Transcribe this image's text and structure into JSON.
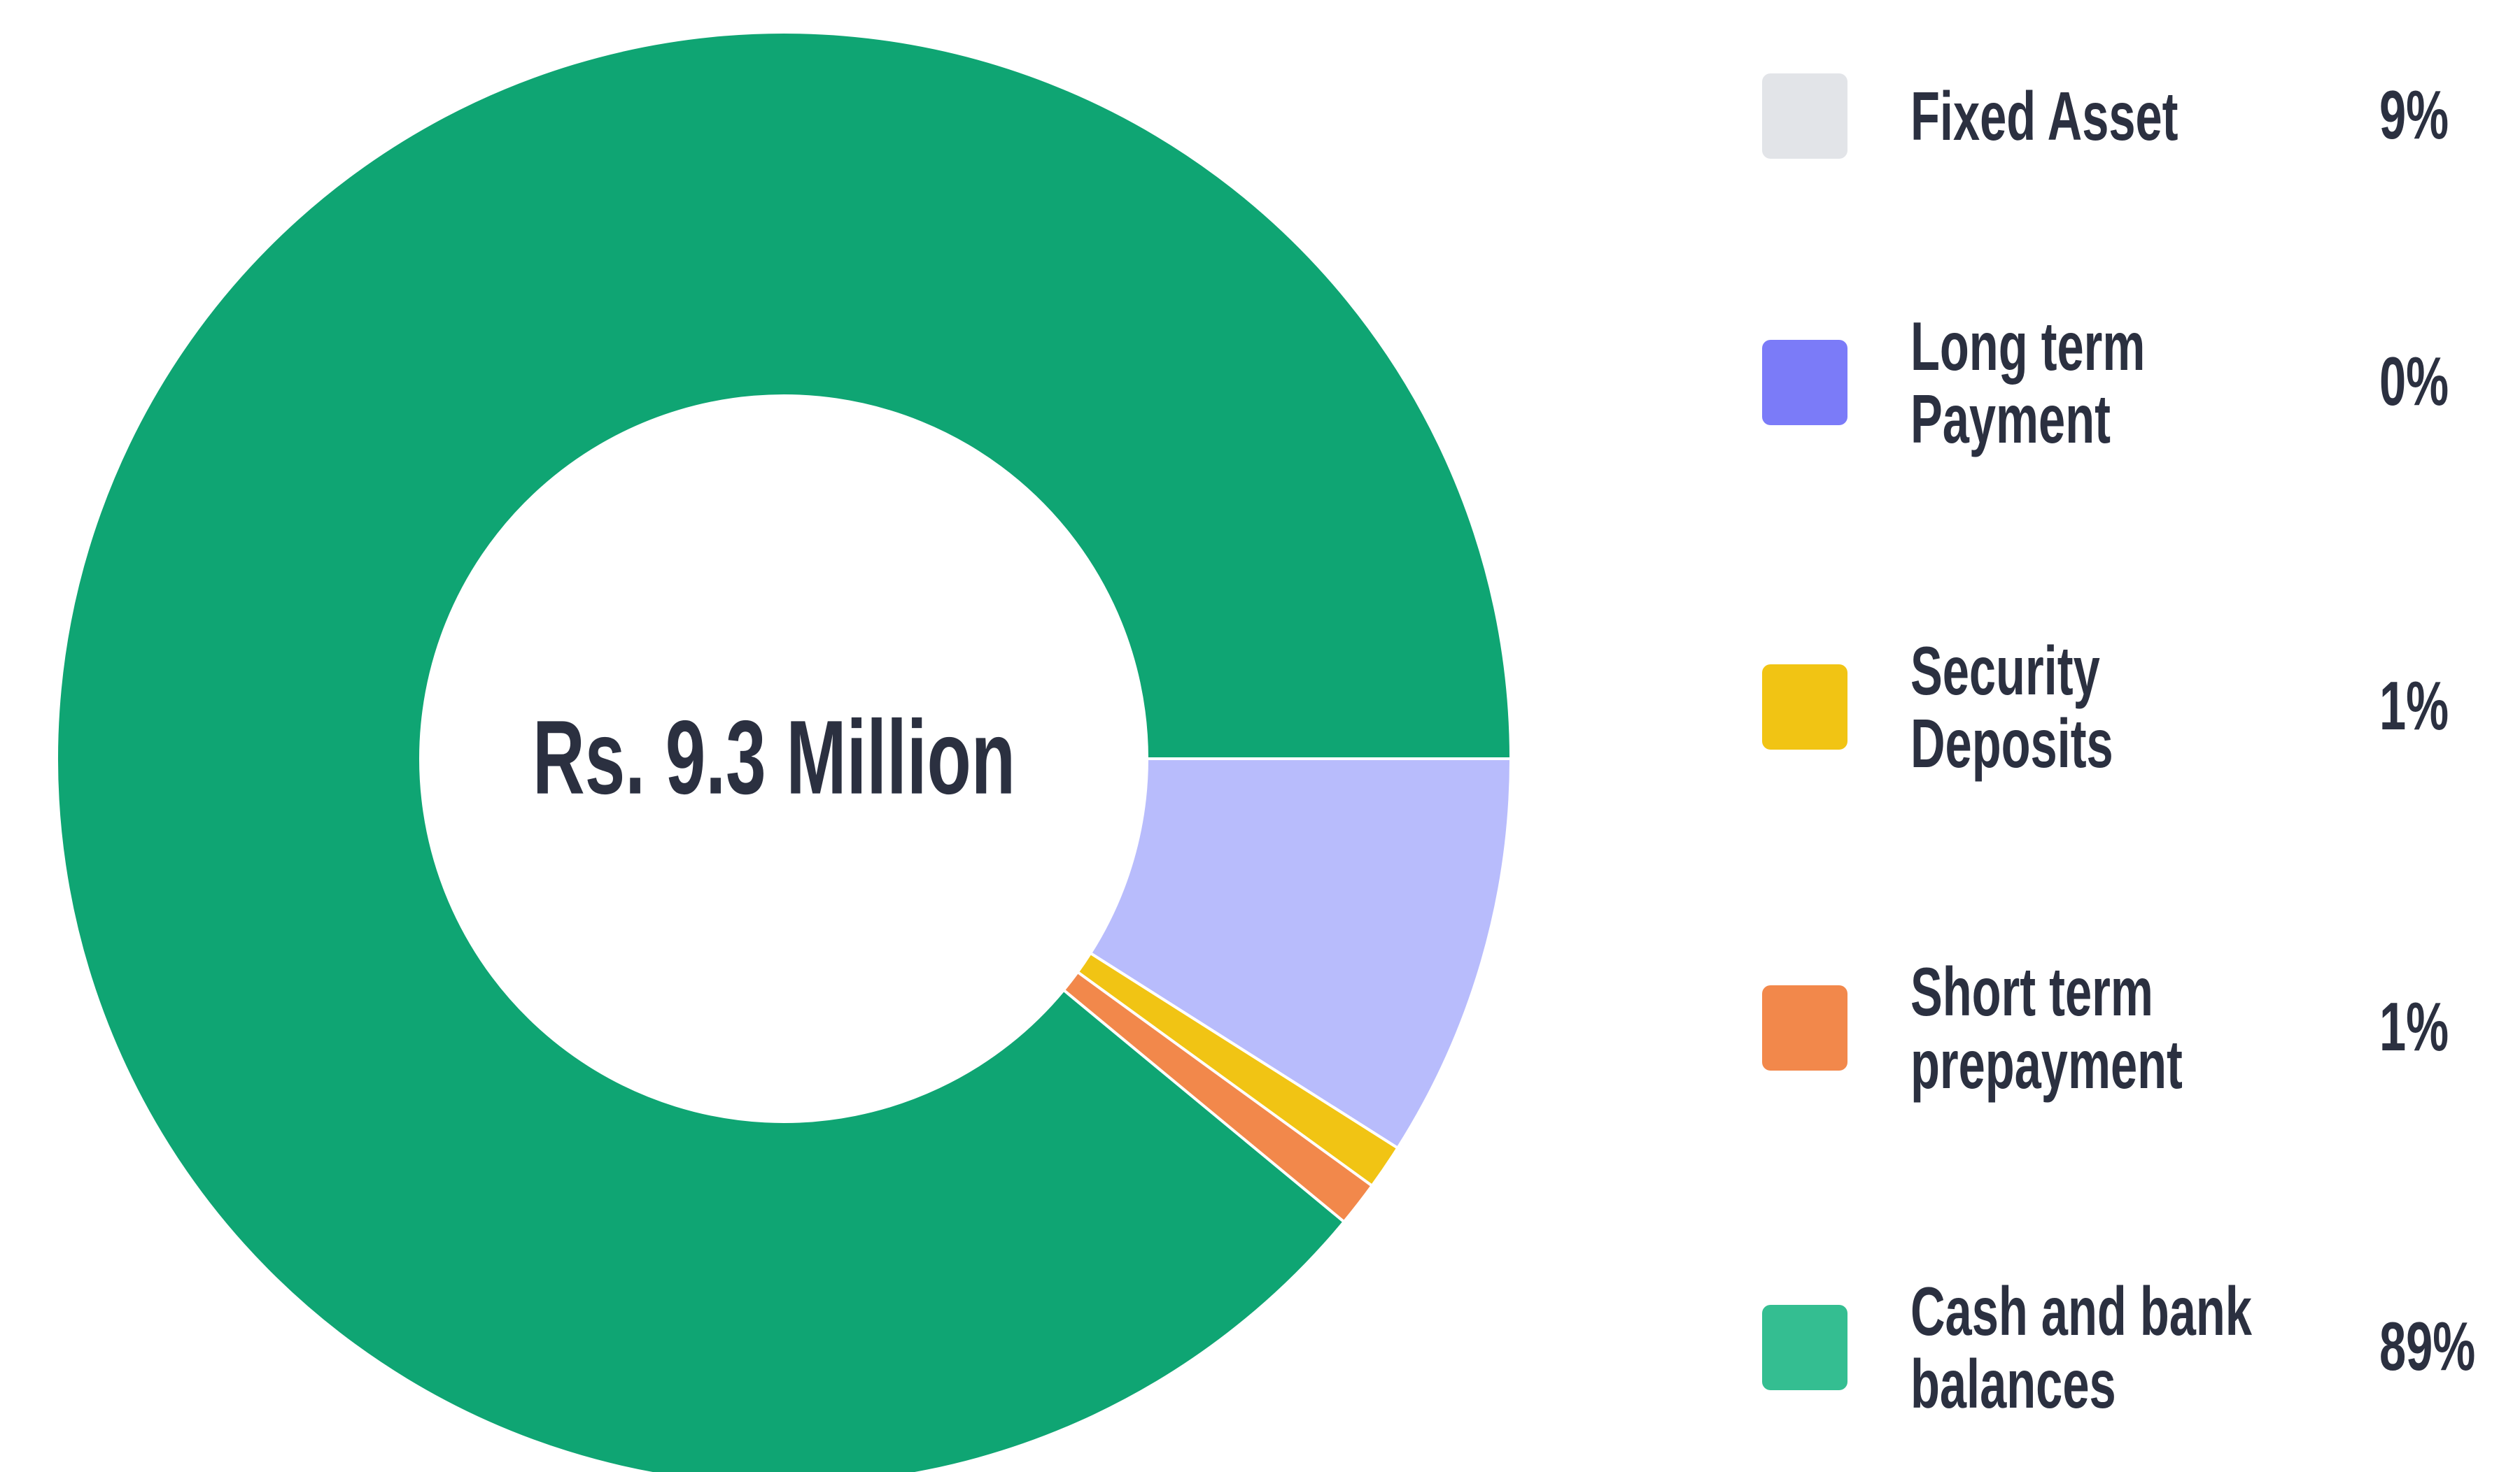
{
  "chart_data": {
    "type": "donut",
    "center_label": "Rs. 9.3 Million",
    "categories": [
      "Fixed Asset",
      "Long term Payment",
      "Security Deposits",
      "Short term prepayment",
      "Cash and bank balances"
    ],
    "values": [
      9,
      0,
      1,
      1,
      89
    ],
    "value_labels": [
      "9%",
      "0%",
      "1%",
      "1%",
      "89%"
    ],
    "colors": [
      "#b8bcfc",
      "#7b7bf8",
      "#f1c414",
      "#f2884b",
      "#0fa573"
    ],
    "legend_colors": [
      "#e2e4e8",
      "#7b7bf8",
      "#f1c414",
      "#f2884b",
      "#34be91"
    ]
  }
}
